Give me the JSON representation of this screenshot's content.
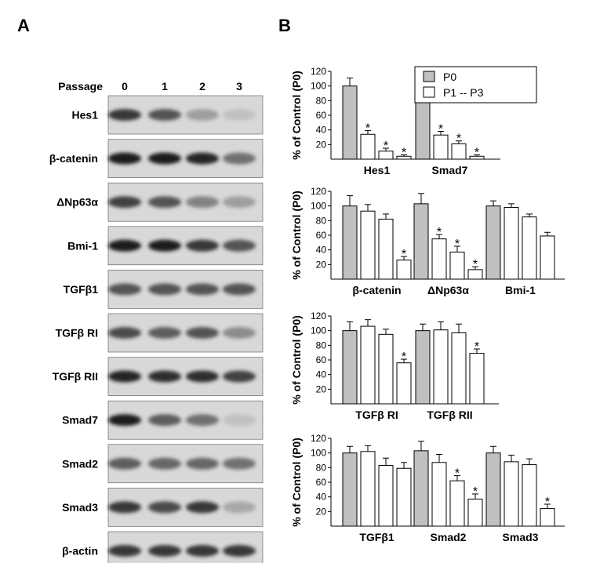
{
  "panels": {
    "a": "A",
    "b": "B"
  },
  "blot": {
    "header_label": "Passage",
    "lanes": [
      "0",
      "1",
      "2",
      "3"
    ],
    "rows": [
      {
        "label": "Hes1",
        "intensity": [
          0.85,
          0.7,
          0.3,
          0.12
        ]
      },
      {
        "label": "β-catenin",
        "intensity": [
          1.0,
          1.0,
          0.95,
          0.55
        ]
      },
      {
        "label": "ΔNp63α",
        "intensity": [
          0.8,
          0.7,
          0.45,
          0.3
        ]
      },
      {
        "label": "Bmi-1",
        "intensity": [
          1.0,
          1.0,
          0.85,
          0.7
        ]
      },
      {
        "label": "TGFβ1",
        "intensity": [
          0.7,
          0.7,
          0.7,
          0.7
        ]
      },
      {
        "label": "TGFβ RI",
        "intensity": [
          0.75,
          0.65,
          0.7,
          0.4
        ]
      },
      {
        "label": "TGFβ RII",
        "intensity": [
          0.95,
          0.9,
          0.9,
          0.8
        ]
      },
      {
        "label": "Smad7",
        "intensity": [
          1.0,
          0.65,
          0.55,
          0.12
        ]
      },
      {
        "label": "Smad2",
        "intensity": [
          0.65,
          0.6,
          0.6,
          0.55
        ]
      },
      {
        "label": "Smad3",
        "intensity": [
          0.85,
          0.75,
          0.85,
          0.25
        ]
      },
      {
        "label": "β-actin",
        "intensity": [
          0.85,
          0.85,
          0.85,
          0.85
        ]
      }
    ]
  },
  "legend": {
    "p0": "P0",
    "p1p3": "P1 -- P3"
  },
  "colors": {
    "p0": "#c0c0c0",
    "p1p3": "#ffffff",
    "band": "#1e1e1e",
    "blot_bg": "#d8d8d8"
  },
  "chart_data": [
    {
      "type": "bar",
      "ylabel": "% of Control (P0)",
      "yticks": [
        20,
        40,
        60,
        80,
        100,
        120
      ],
      "ylim": [
        0,
        120
      ],
      "groups": [
        {
          "name": "Hes1",
          "values": [
            100,
            34,
            11,
            4
          ],
          "errors": [
            11,
            5,
            4,
            2
          ],
          "sig": [
            false,
            true,
            true,
            true
          ]
        },
        {
          "name": "Smad7",
          "values": [
            100,
            33,
            21,
            4
          ],
          "errors": [
            10,
            5,
            4,
            2
          ],
          "sig": [
            false,
            true,
            true,
            true
          ]
        }
      ]
    },
    {
      "type": "bar",
      "ylabel": "% of Control (P0)",
      "yticks": [
        20,
        40,
        60,
        80,
        100,
        120
      ],
      "ylim": [
        0,
        120
      ],
      "groups": [
        {
          "name": "β-catenin",
          "values": [
            100,
            93,
            82,
            26
          ],
          "errors": [
            14,
            9,
            7,
            5
          ],
          "sig": [
            false,
            false,
            false,
            true
          ]
        },
        {
          "name": "ΔNp63α",
          "values": [
            103,
            55,
            37,
            13
          ],
          "errors": [
            14,
            6,
            8,
            4
          ],
          "sig": [
            false,
            true,
            true,
            true
          ]
        },
        {
          "name": "Bmi-1",
          "values": [
            100,
            98,
            85,
            59
          ],
          "errors": [
            7,
            5,
            4,
            5
          ],
          "sig": [
            false,
            false,
            false,
            false
          ]
        }
      ]
    },
    {
      "type": "bar",
      "ylabel": "% of Control (P0)",
      "yticks": [
        20,
        40,
        60,
        80,
        100,
        120
      ],
      "ylim": [
        0,
        120
      ],
      "groups": [
        {
          "name": "TGFβ RI",
          "values": [
            100,
            106,
            95,
            56
          ],
          "errors": [
            12,
            9,
            7,
            5
          ],
          "sig": [
            false,
            false,
            false,
            true
          ]
        },
        {
          "name": "TGFβ RII",
          "values": [
            100,
            101,
            97,
            69
          ],
          "errors": [
            9,
            11,
            12,
            6
          ],
          "sig": [
            false,
            false,
            false,
            true
          ]
        }
      ]
    },
    {
      "type": "bar",
      "ylabel": "% of Control (P0)",
      "yticks": [
        20,
        40,
        60,
        80,
        100,
        120
      ],
      "ylim": [
        0,
        120
      ],
      "groups": [
        {
          "name": "TGFβ1",
          "values": [
            100,
            102,
            83,
            79
          ],
          "errors": [
            9,
            8,
            10,
            8
          ],
          "sig": [
            false,
            false,
            false,
            false
          ]
        },
        {
          "name": "Smad2",
          "values": [
            103,
            87,
            62,
            37
          ],
          "errors": [
            13,
            11,
            7,
            7
          ],
          "sig": [
            false,
            false,
            true,
            true
          ]
        },
        {
          "name": "Smad3",
          "values": [
            100,
            88,
            84,
            24
          ],
          "errors": [
            9,
            9,
            8,
            6
          ],
          "sig": [
            false,
            false,
            false,
            true
          ]
        }
      ]
    }
  ]
}
